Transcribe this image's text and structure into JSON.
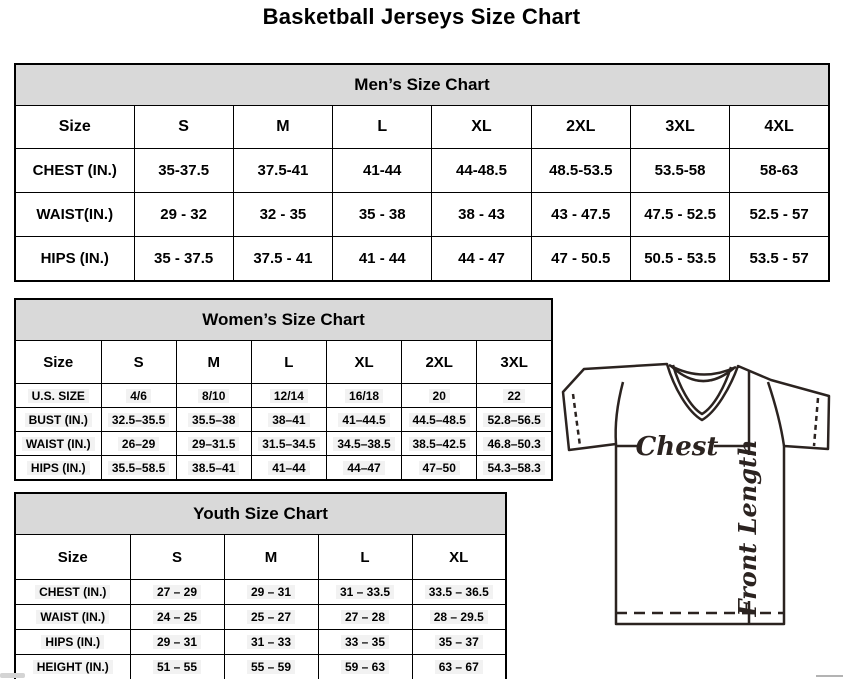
{
  "page_title": "Basketball Jerseys Size Chart",
  "mens_table": {
    "title": "Men’s Size Chart",
    "columns": [
      "Size",
      "S",
      "M",
      "L",
      "XL",
      "2XL",
      "3XL",
      "4XL"
    ],
    "rows": [
      {
        "label": "CHEST (IN.)",
        "values": [
          "35-37.5",
          "37.5-41",
          "41-44",
          "44-48.5",
          "48.5-53.5",
          "53.5-58",
          "58-63"
        ]
      },
      {
        "label": "WAIST(IN.)",
        "values": [
          "29 - 32",
          "32 - 35",
          "35 - 38",
          "38 - 43",
          "43 - 47.5",
          "47.5 - 52.5",
          "52.5 - 57"
        ]
      },
      {
        "label": "HIPS (IN.)",
        "values": [
          "35 - 37.5",
          "37.5 - 41",
          "41 - 44",
          "44 - 47",
          "47 - 50.5",
          "50.5 - 53.5",
          "53.5 - 57"
        ]
      }
    ]
  },
  "womens_table": {
    "title": "Women’s Size Chart",
    "columns": [
      "Size",
      "S",
      "M",
      "L",
      "XL",
      "2XL",
      "3XL"
    ],
    "rows": [
      {
        "label": "U.S. SIZE",
        "values": [
          "4/6",
          "8/10",
          "12/14",
          "16/18",
          "20",
          "22"
        ]
      },
      {
        "label": "BUST (IN.)",
        "values": [
          "32.5–35.5",
          "35.5–38",
          "38–41",
          "41–44.5",
          "44.5–48.5",
          "52.8–56.5"
        ]
      },
      {
        "label": "WAIST (IN.)",
        "values": [
          "26–29",
          "29–31.5",
          "31.5–34.5",
          "34.5–38.5",
          "38.5–42.5",
          "46.8–50.3"
        ]
      },
      {
        "label": "HIPS (IN.)",
        "values": [
          "35.5–58.5",
          "38.5–41",
          "41–44",
          "44–47",
          "47–50",
          "54.3–58.3"
        ]
      }
    ]
  },
  "youth_table": {
    "title": "Youth Size Chart",
    "columns": [
      "Size",
      "S",
      "M",
      "L",
      "XL"
    ],
    "rows": [
      {
        "label": "CHEST (IN.)",
        "values": [
          "27 – 29",
          "29 – 31",
          "31 – 33.5",
          "33.5 – 36.5"
        ]
      },
      {
        "label": "WAIST (IN.)",
        "values": [
          "24 – 25",
          "25 – 27",
          "27 – 28",
          "28 – 29.5"
        ]
      },
      {
        "label": "HIPS (IN.)",
        "values": [
          "29 – 31",
          "31 – 33",
          "33 – 35",
          "35 – 37"
        ]
      },
      {
        "label": "HEIGHT (IN.)",
        "values": [
          "51 – 55",
          "55 – 59",
          "59 – 63",
          "63 – 67"
        ]
      }
    ]
  },
  "diagram": {
    "chest_label": "Chest",
    "front_length_label": "Front Length"
  },
  "colors": {
    "table_header_bg": "#d9d9d9",
    "table_border": "#000000",
    "diagram_line": "#2b2320",
    "highlight_bg": "#f2f2f2"
  }
}
